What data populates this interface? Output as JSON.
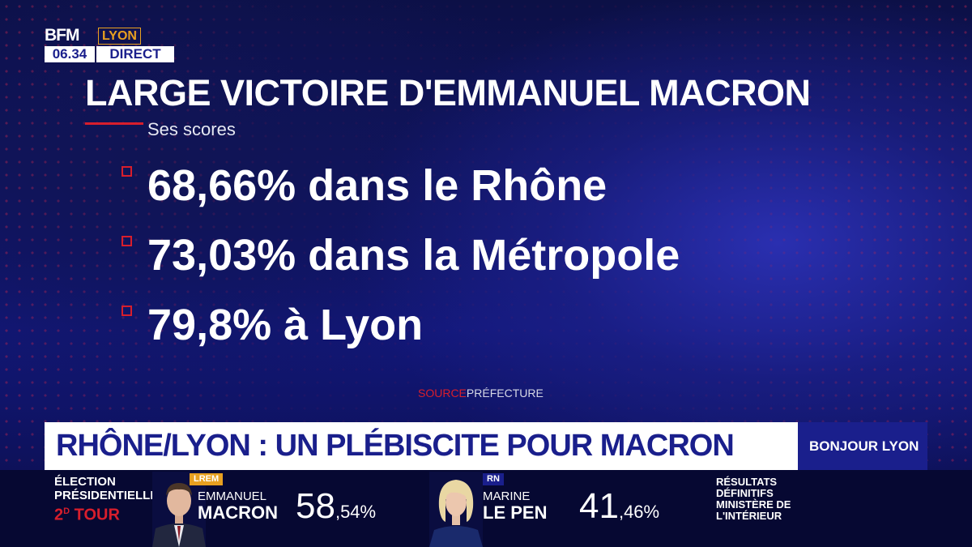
{
  "logo": {
    "brand": "BFM",
    "city": "LYON",
    "time": "06.34",
    "live": "DIRECT"
  },
  "headline": {
    "title": "LARGE VICTOIRE D'EMMANUEL MACRON",
    "subtitle": "Ses scores"
  },
  "scores": [
    "68,66% dans le Rhône",
    "73,03% dans la Métropole",
    "79,8% à Lyon"
  ],
  "source": {
    "label": "SOURCE",
    "value": "PRÉFECTURE"
  },
  "ticker": {
    "text": "RHÔNE/LYON : UN PLÉBISCITE POUR MACRON",
    "program": "BONJOUR LYON"
  },
  "election": {
    "line1": "ÉLECTION",
    "line2": "PRÉSIDENTIELLE",
    "round_num": "2",
    "round_sup": "D",
    "round_word": "TOUR"
  },
  "candidates": [
    {
      "party": "LREM",
      "party_color": "#e8a020",
      "first": "EMMANUEL",
      "last": "MACRON",
      "pct_int": "58",
      "pct_dec": ",54%"
    },
    {
      "party": "RN",
      "party_color": "#1a1f8c",
      "first": "MARINE",
      "last": "LE PEN",
      "pct_int": "41",
      "pct_dec": ",46%"
    }
  ],
  "results": {
    "line1": "RÉSULTATS",
    "line2": "DÉFINITIFS",
    "line3": "MINISTÈRE DE",
    "line4": "L'INTÉRIEUR"
  },
  "colors": {
    "accent_red": "#d81e2c",
    "navy": "#1a1f8c",
    "gold": "#e8a020"
  }
}
